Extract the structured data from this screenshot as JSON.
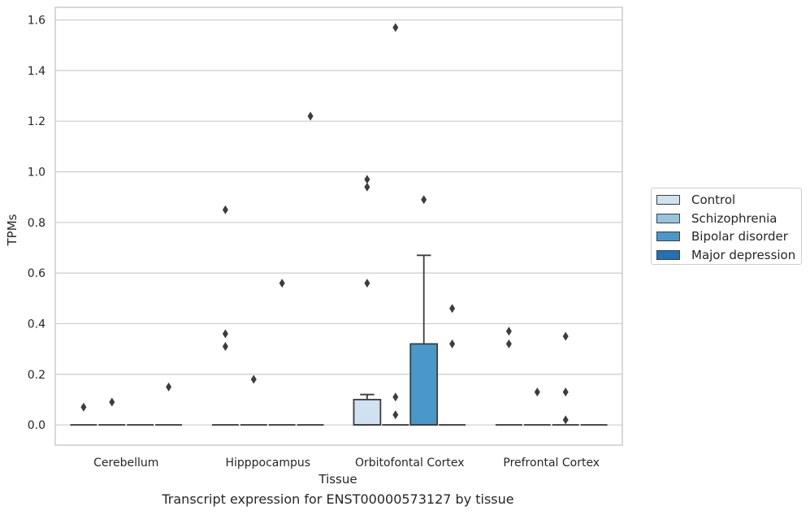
{
  "chart_data": {
    "type": "box",
    "title": "",
    "xlabel": "Tissue",
    "ylabel": "TPMs",
    "caption": "Transcript expression for ENST00000573127 by tissue",
    "categories": [
      "Cerebellum",
      "Hipppocampus",
      "Orbitofontal Cortex",
      "Prefrontal Cortex"
    ],
    "ylim": [
      -0.08,
      1.65
    ],
    "yticks": [
      0.0,
      0.2,
      0.4,
      0.6,
      0.8,
      1.0,
      1.2,
      1.4,
      1.6
    ],
    "ytick_labels": [
      "0.0",
      "0.2",
      "0.4",
      "0.6",
      "0.8",
      "1.0",
      "1.2",
      "1.4",
      "1.6"
    ],
    "grid": "horizontal",
    "legend_position": "right",
    "series": [
      {
        "name": "Control",
        "color": "#d0e1f2",
        "boxes": [
          {
            "q1": 0,
            "median": 0,
            "q3": 0,
            "whisker_low": 0,
            "whisker_high": 0,
            "outliers": [
              0.07
            ]
          },
          {
            "q1": 0,
            "median": 0,
            "q3": 0,
            "whisker_low": 0,
            "whisker_high": 0,
            "outliers": [
              0.31,
              0.36,
              0.85
            ]
          },
          {
            "q1": 0,
            "median": 0,
            "q3": 0.1,
            "whisker_low": 0,
            "whisker_high": 0.12,
            "outliers": [
              0.56,
              0.94,
              0.97
            ]
          },
          {
            "q1": 0,
            "median": 0,
            "q3": 0,
            "whisker_low": 0,
            "whisker_high": 0,
            "outliers": [
              0.32,
              0.37
            ]
          }
        ]
      },
      {
        "name": "Schizophrenia",
        "color": "#94c4df",
        "boxes": [
          {
            "q1": 0,
            "median": 0,
            "q3": 0,
            "whisker_low": 0,
            "whisker_high": 0,
            "outliers": [
              0.09
            ]
          },
          {
            "q1": 0,
            "median": 0,
            "q3": 0,
            "whisker_low": 0,
            "whisker_high": 0,
            "outliers": [
              0.18
            ]
          },
          {
            "q1": 0,
            "median": 0,
            "q3": 0,
            "whisker_low": 0,
            "whisker_high": 0,
            "outliers": [
              0.04,
              0.11,
              1.57
            ]
          },
          {
            "q1": 0,
            "median": 0,
            "q3": 0,
            "whisker_low": 0,
            "whisker_high": 0,
            "outliers": [
              0.13
            ]
          }
        ]
      },
      {
        "name": "Bipolar disorder",
        "color": "#4a98c9",
        "boxes": [
          {
            "q1": 0,
            "median": 0,
            "q3": 0,
            "whisker_low": 0,
            "whisker_high": 0,
            "outliers": []
          },
          {
            "q1": 0,
            "median": 0,
            "q3": 0,
            "whisker_low": 0,
            "whisker_high": 0,
            "outliers": [
              0.56
            ]
          },
          {
            "q1": 0,
            "median": 0,
            "q3": 0.32,
            "whisker_low": 0,
            "whisker_high": 0.67,
            "outliers": [
              0.89
            ]
          },
          {
            "q1": 0,
            "median": 0,
            "q3": 0,
            "whisker_low": 0,
            "whisker_high": 0,
            "outliers": [
              0.02,
              0.13,
              0.35
            ]
          }
        ]
      },
      {
        "name": "Major depression",
        "color": "#2171b5",
        "boxes": [
          {
            "q1": 0,
            "median": 0,
            "q3": 0,
            "whisker_low": 0,
            "whisker_high": 0,
            "outliers": [
              0.15
            ]
          },
          {
            "q1": 0,
            "median": 0,
            "q3": 0,
            "whisker_low": 0,
            "whisker_high": 0,
            "outliers": [
              1.22
            ]
          },
          {
            "q1": 0,
            "median": 0,
            "q3": 0,
            "whisker_low": 0,
            "whisker_high": 0,
            "outliers": [
              0.32,
              0.46
            ]
          },
          {
            "q1": 0,
            "median": 0,
            "q3": 0,
            "whisker_low": 0,
            "whisker_high": 0,
            "outliers": []
          }
        ]
      }
    ]
  }
}
